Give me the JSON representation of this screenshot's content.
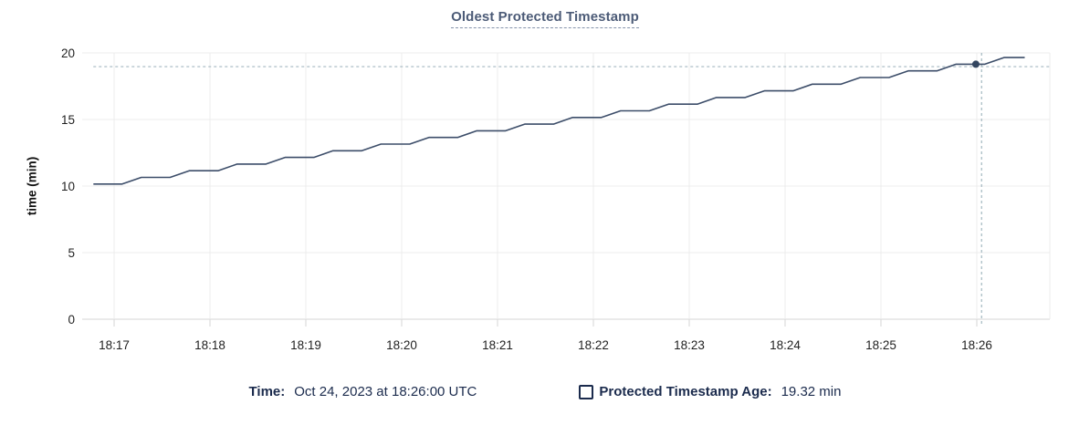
{
  "title": {
    "text": "Oldest Protected Timestamp"
  },
  "colors": {
    "line": "#3c4d69",
    "dot": "#334660",
    "crosshair": "#a3b7c0",
    "grid": "#ececec",
    "axis": "#d6d6d6",
    "tick_text": "#1f1f1f",
    "title_text": "#4c5b77",
    "legend_text": "#1b2b4d"
  },
  "legend": {
    "time_label": "Time:",
    "time_value": "Oct 24, 2023 at 18:26:00 UTC",
    "series_label": "Protected Timestamp Age:",
    "series_value": "19.32 min"
  },
  "chart_data": {
    "type": "line",
    "title": "Oldest Protected Timestamp",
    "ylabel": "time (min)",
    "ylim": [
      0,
      20
    ],
    "yticks": [
      0,
      5,
      10,
      15,
      20
    ],
    "x_tick_labels": [
      "18:17",
      "18:18",
      "18:19",
      "18:20",
      "18:21",
      "18:22",
      "18:23",
      "18:24",
      "18:25",
      "18:26"
    ],
    "x_tick_seconds": [
      0,
      60,
      120,
      180,
      240,
      300,
      360,
      420,
      480,
      540
    ],
    "x_range_seconds": [
      -20,
      586
    ],
    "grid": true,
    "legend_position": "bottom",
    "series": [
      {
        "name": "Protected Timestamp Age",
        "unit": "min",
        "points": [
          [
            -13,
            10.15
          ],
          [
            5,
            10.15
          ],
          [
            17,
            10.65
          ],
          [
            35,
            10.65
          ],
          [
            47,
            11.15
          ],
          [
            65,
            11.15
          ],
          [
            77,
            11.65
          ],
          [
            95,
            11.65
          ],
          [
            107,
            12.15
          ],
          [
            125,
            12.15
          ],
          [
            137,
            12.65
          ],
          [
            155,
            12.65
          ],
          [
            167,
            13.15
          ],
          [
            185,
            13.15
          ],
          [
            197,
            13.65
          ],
          [
            215,
            13.65
          ],
          [
            227,
            14.15
          ],
          [
            245,
            14.15
          ],
          [
            257,
            14.65
          ],
          [
            275,
            14.65
          ],
          [
            287,
            15.15
          ],
          [
            305,
            15.15
          ],
          [
            317,
            15.65
          ],
          [
            335,
            15.65
          ],
          [
            347,
            16.15
          ],
          [
            365,
            16.15
          ],
          [
            377,
            16.65
          ],
          [
            395,
            16.65
          ],
          [
            407,
            17.15
          ],
          [
            425,
            17.15
          ],
          [
            437,
            17.65
          ],
          [
            455,
            17.65
          ],
          [
            467,
            18.15
          ],
          [
            485,
            18.15
          ],
          [
            497,
            18.65
          ],
          [
            515,
            18.65
          ],
          [
            527,
            19.15
          ],
          [
            545,
            19.15
          ],
          [
            557,
            19.65
          ],
          [
            570,
            19.65
          ]
        ]
      }
    ],
    "hover": {
      "time_label": "18:26",
      "value_min": 19.32,
      "point_t": 539.4,
      "point_v": 19.15,
      "vline_t": 543,
      "hline_v": 18.97,
      "hline_start_t": -13
    }
  }
}
